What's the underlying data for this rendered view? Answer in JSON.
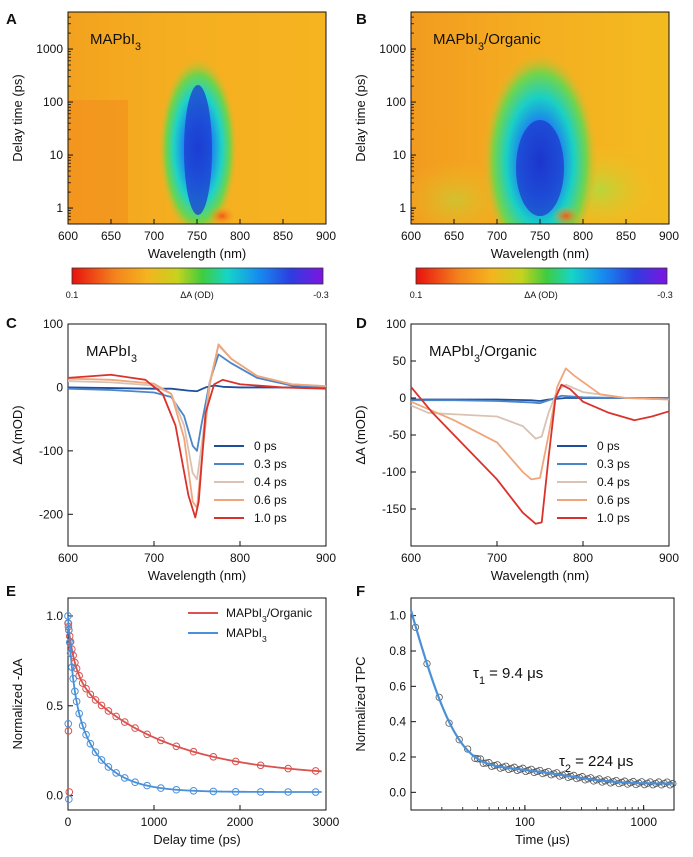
{
  "chart_data": [
    {
      "panel": "A",
      "type": "heatmap",
      "title": "MAPbI3",
      "title_main": "MAPbI",
      "title_sub": "3",
      "title_rest": "",
      "xlabel": "Wavelength (nm)",
      "ylabel": "Delay time (ps)",
      "xlim": [
        600,
        900
      ],
      "ylim": [
        0.5,
        5000
      ],
      "yscale": "log",
      "xticks": [
        "600",
        "650",
        "700",
        "750",
        "800",
        "850",
        "900"
      ],
      "yticks": [
        "1",
        "10",
        "100",
        "1000"
      ],
      "colorbar": {
        "label": "ΔA (OD)",
        "min_label": "0.1",
        "max_label": "-0.3",
        "range": [
          0.1,
          -0.3
        ]
      }
    },
    {
      "panel": "B",
      "type": "heatmap",
      "title": "MAPbI3/Organic",
      "title_main": "MAPbI",
      "title_sub": "3",
      "title_rest": "/Organic",
      "xlabel": "Wavelength (nm)",
      "ylabel": "Delay time (ps)",
      "xlim": [
        600,
        900
      ],
      "ylim": [
        0.5,
        5000
      ],
      "yscale": "log",
      "xticks": [
        "600",
        "650",
        "700",
        "750",
        "800",
        "850",
        "900"
      ],
      "yticks": [
        "1",
        "10",
        "100",
        "1000"
      ],
      "colorbar": {
        "label": "ΔA (OD)",
        "min_label": "0.1",
        "max_label": "-0.3",
        "range": [
          0.1,
          -0.3
        ]
      }
    },
    {
      "panel": "C",
      "type": "line",
      "title": "MAPbI3",
      "title_main": "MAPbI",
      "title_sub": "3",
      "title_rest": "",
      "xlabel": "Wavelength (nm)",
      "ylabel": "ΔA (mOD)",
      "xlim": [
        600,
        900
      ],
      "ylim": [
        -250,
        100
      ],
      "xticks": [
        "600",
        "700",
        "800",
        "900"
      ],
      "yticks": [
        "100",
        "0",
        "-100",
        "-200"
      ],
      "legend_position": "bottom-right",
      "series": [
        {
          "name": "0 ps",
          "color": "#1f4e9c",
          "x": [
            600,
            650,
            700,
            720,
            740,
            750,
            760,
            770,
            780,
            800,
            850,
            900
          ],
          "y": [
            0,
            -1,
            -2,
            -2,
            -5,
            -6,
            0,
            3,
            1,
            0,
            0,
            0
          ]
        },
        {
          "name": "0.3 ps",
          "color": "#4a86c8",
          "x": [
            600,
            650,
            700,
            720,
            735,
            745,
            750,
            755,
            765,
            775,
            790,
            820,
            860,
            900
          ],
          "y": [
            -2,
            -4,
            -8,
            -15,
            -45,
            -92,
            -100,
            -60,
            10,
            52,
            38,
            15,
            3,
            0
          ]
        },
        {
          "name": "0.4 ps",
          "color": "#d9c2b4",
          "x": [
            600,
            650,
            700,
            720,
            735,
            745,
            750,
            755,
            765,
            775,
            790,
            820,
            860,
            900
          ],
          "y": [
            10,
            8,
            3,
            -10,
            -60,
            -135,
            -145,
            -95,
            10,
            66,
            45,
            18,
            5,
            2
          ]
        },
        {
          "name": "0.6 ps",
          "color": "#f0a57a",
          "x": [
            600,
            650,
            700,
            720,
            735,
            745,
            750,
            755,
            765,
            775,
            790,
            820,
            860,
            900
          ],
          "y": [
            14,
            12,
            6,
            -10,
            -80,
            -180,
            -190,
            -120,
            5,
            68,
            45,
            18,
            5,
            2
          ]
        },
        {
          "name": "1.0 ps",
          "color": "#d9322d",
          "x": [
            600,
            650,
            690,
            710,
            725,
            740,
            748,
            752,
            760,
            770,
            780,
            800,
            850,
            900
          ],
          "y": [
            15,
            20,
            12,
            -10,
            -60,
            -170,
            -205,
            -180,
            -40,
            5,
            12,
            5,
            0,
            -2
          ]
        }
      ]
    },
    {
      "panel": "D",
      "type": "line",
      "title": "MAPbI3/Organic",
      "title_main": "MAPbI",
      "title_sub": "3",
      "title_rest": "/Organic",
      "xlabel": "Wavelength (nm)",
      "ylabel": "ΔA (mOD)",
      "xlim": [
        600,
        900
      ],
      "ylim": [
        -200,
        100
      ],
      "xticks": [
        "600",
        "700",
        "800",
        "900"
      ],
      "yticks": [
        "100",
        "50",
        "0",
        "-50",
        "-100",
        "-150"
      ],
      "legend_position": "bottom-right",
      "series": [
        {
          "name": "0 ps",
          "color": "#1f4e9c",
          "x": [
            600,
            650,
            700,
            740,
            750,
            760,
            780,
            800,
            850,
            900
          ],
          "y": [
            -2,
            -2,
            -2,
            -3,
            -4,
            -2,
            0,
            0,
            0,
            0
          ]
        },
        {
          "name": "0.3 ps",
          "color": "#4a86c8",
          "x": [
            600,
            650,
            700,
            740,
            750,
            760,
            775,
            800,
            850,
            900
          ],
          "y": [
            -3,
            -3,
            -4,
            -6,
            -7,
            -3,
            3,
            1,
            0,
            0
          ]
        },
        {
          "name": "0.4 ps",
          "color": "#d9c2b4",
          "x": [
            600,
            620,
            650,
            700,
            730,
            745,
            752,
            760,
            770,
            780,
            800,
            850,
            900
          ],
          "y": [
            -10,
            -20,
            -22,
            -25,
            -38,
            -55,
            -52,
            -20,
            10,
            18,
            8,
            0,
            -2
          ]
        },
        {
          "name": "0.6 ps",
          "color": "#f0a57a",
          "x": [
            600,
            620,
            650,
            700,
            730,
            740,
            750,
            760,
            770,
            780,
            790,
            820,
            850,
            900
          ],
          "y": [
            -5,
            -15,
            -30,
            -60,
            -100,
            -110,
            -108,
            -50,
            15,
            40,
            30,
            5,
            0,
            -2
          ]
        },
        {
          "name": "1.0 ps",
          "color": "#d9322d",
          "x": [
            600,
            625,
            650,
            700,
            730,
            745,
            752,
            760,
            768,
            775,
            785,
            800,
            830,
            860,
            880,
            900
          ],
          "y": [
            15,
            -20,
            -50,
            -110,
            -155,
            -170,
            -168,
            -80,
            0,
            18,
            12,
            -5,
            -20,
            -30,
            -25,
            -18
          ]
        }
      ]
    },
    {
      "panel": "E",
      "type": "scatter",
      "xlabel": "Delay time (ps)",
      "ylabel": "Normalized -ΔA",
      "xlim": [
        0,
        3000
      ],
      "ylim": [
        -0.08,
        1.1
      ],
      "xticks": [
        "0",
        "1000",
        "2000",
        "3000"
      ],
      "yticks": [
        "0.0",
        "0.5",
        "1.0"
      ],
      "legend_position": "top-right",
      "series": [
        {
          "name": "MAPbI3/Organic",
          "name_main": "MAPbI",
          "name_sub": "3",
          "name_rest": "/Organic",
          "color": "#d9534f",
          "fit": {
            "model": "biexp",
            "a1": 0.28,
            "t1": 80,
            "a2": 0.58,
            "t2": 1050,
            "c": 0.1
          }
        },
        {
          "name": "MAPbI3",
          "name_main": "MAPbI",
          "name_sub": "3",
          "name_rest": "",
          "color": "#4a90d9",
          "fit": {
            "model": "biexp",
            "a1": 0.4,
            "t1": 60,
            "a2": 0.58,
            "t2": 330,
            "c": 0.02
          }
        }
      ],
      "scatter_x": [
        0,
        5,
        10,
        20,
        30,
        45,
        60,
        80,
        100,
        130,
        170,
        210,
        260,
        320,
        390,
        470,
        560,
        660,
        780,
        920,
        1080,
        1260,
        1460,
        1690,
        1950,
        2240,
        2560,
        2880
      ],
      "outliers": [
        {
          "series": 0,
          "x": 5,
          "y": 0.36
        },
        {
          "series": 0,
          "x": 15,
          "y": 0.02
        },
        {
          "series": 1,
          "x": 3,
          "y": 0.4
        },
        {
          "series": 1,
          "x": 10,
          "y": -0.02
        }
      ]
    },
    {
      "panel": "F",
      "type": "scatter",
      "xlabel": "Time (μs)",
      "ylabel": "Normalized TPC",
      "xscale": "log",
      "xlim": [
        11,
        1800
      ],
      "ylim": [
        -0.1,
        1.1
      ],
      "xticks": [
        "100",
        "1000"
      ],
      "yticks": [
        "0.0",
        "0.2",
        "0.4",
        "0.6",
        "0.8",
        "1.0"
      ],
      "annotations": [
        {
          "main": "τ",
          "sub": "1",
          "rest": " = 9.4 μs"
        },
        {
          "main": "τ",
          "sub": "2",
          "rest": " = 224 μs"
        }
      ],
      "series": [
        {
          "name": "",
          "color": "#4a90d9",
          "fit": {
            "model": "biexp",
            "a1": 2.79,
            "t1": 9.4,
            "a2": 0.12,
            "t2": 224,
            "c": 0.05,
            "t0": 0
          }
        }
      ]
    }
  ]
}
